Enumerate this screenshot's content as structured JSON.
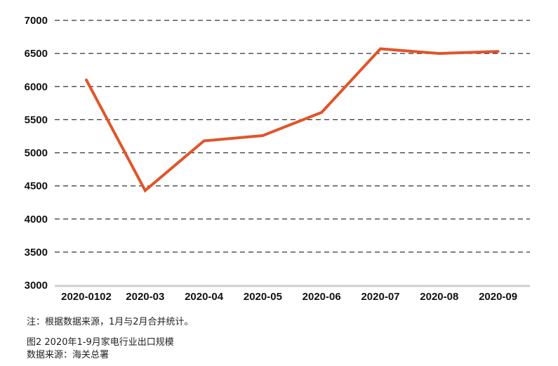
{
  "chart_data": {
    "type": "line",
    "title": "",
    "xlabel": "",
    "ylabel": "",
    "categories": [
      "2020-0102",
      "2020-03",
      "2020-04",
      "2020-05",
      "2020-06",
      "2020-07",
      "2020-08",
      "2020-09"
    ],
    "series": [
      {
        "values": [
          6100,
          4430,
          5180,
          5260,
          5610,
          6570,
          6500,
          6530
        ],
        "color": "#e0552a"
      }
    ],
    "ylim": [
      3000,
      7000
    ],
    "yticks": [
      3000,
      3500,
      4000,
      4500,
      5000,
      5500,
      6000,
      6500,
      7000
    ],
    "grid": "dashed-horizontal",
    "legend": "none"
  },
  "footnotes": {
    "note": "注：根据数据来源，1月与2月合并统计。",
    "caption": "图2 2020年1-9月家电行业出口规模",
    "source": "数据来源：海关总署"
  }
}
